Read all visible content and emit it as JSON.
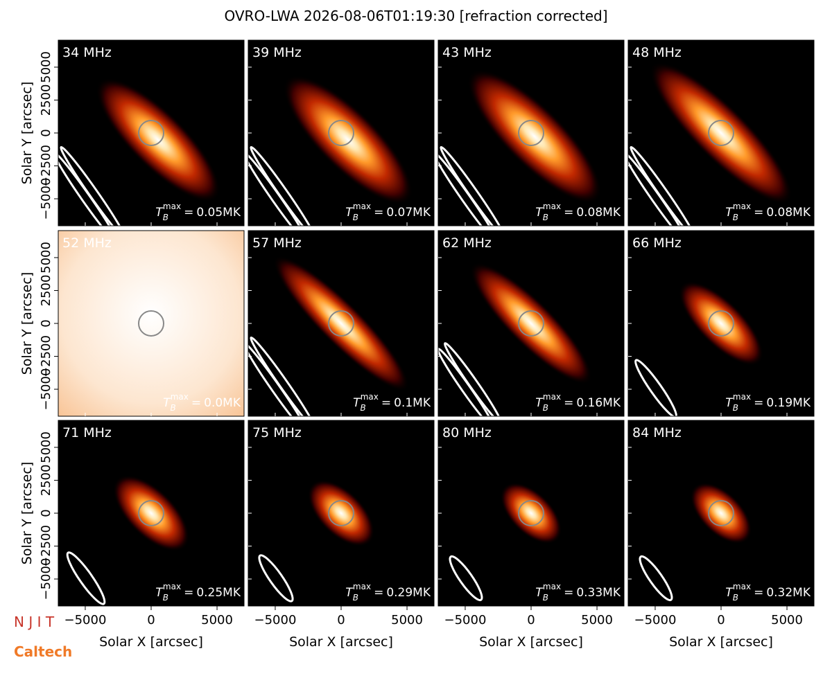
{
  "chart_data": {
    "type": "image-grid",
    "title": "OVRO-LWA 2026-08-06T01:19:30 [refraction corrected]",
    "xlabel": "Solar X [arcsec]",
    "ylabel": "Solar Y [arcsec]",
    "xlim": [
      -7050,
      7050
    ],
    "ylim": [
      -7050,
      7050
    ],
    "xticks": [
      {
        "value": -5000,
        "label": "−5000"
      },
      0,
      5000
    ],
    "yticks": [
      {
        "value": -5000,
        "label": "−5000"
      },
      {
        "value": -2500,
        "label": "−2500"
      },
      0,
      2500,
      5000
    ],
    "tb_symbol": {
      "base": "T",
      "sub": "B",
      "sup": "max",
      "eq": "="
    },
    "panels": [
      {
        "title": "34 MHz",
        "tb_max": 0.05,
        "tb_label": "0.05MK"
      },
      {
        "title": "39 MHz",
        "tb_max": 0.07,
        "tb_label": "0.07MK"
      },
      {
        "title": "43 MHz",
        "tb_max": 0.08,
        "tb_label": "0.08MK"
      },
      {
        "title": "48 MHz",
        "tb_max": 0.08,
        "tb_label": "0.08MK"
      },
      {
        "title": "52 MHz",
        "tb_max": 0.0,
        "tb_label": "0.0MK"
      },
      {
        "title": "57 MHz",
        "tb_max": 0.1,
        "tb_label": "0.1MK"
      },
      {
        "title": "62 MHz",
        "tb_max": 0.16,
        "tb_label": "0.16MK"
      },
      {
        "title": "66 MHz",
        "tb_max": 0.19,
        "tb_label": "0.19MK"
      },
      {
        "title": "71 MHz",
        "tb_max": 0.25,
        "tb_label": "0.25MK"
      },
      {
        "title": "75 MHz",
        "tb_max": 0.29,
        "tb_label": "0.29MK"
      },
      {
        "title": "80 MHz",
        "tb_max": 0.33,
        "tb_label": "0.33MK"
      },
      {
        "title": "84 MHz",
        "tb_max": 0.32,
        "tb_label": "0.32MK"
      }
    ]
  },
  "logos": {
    "njit": "N J I T",
    "caltech": "Caltech"
  }
}
